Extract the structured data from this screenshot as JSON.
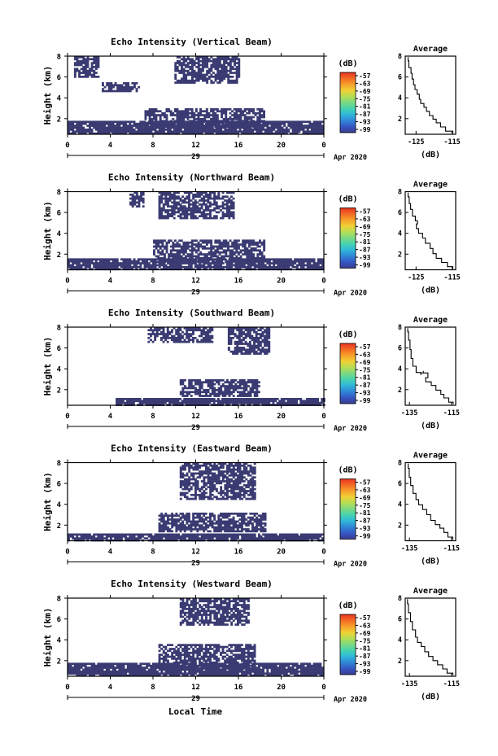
{
  "figure": {
    "xlabel": "Local Time",
    "height_ylabel": "Height (km)",
    "date_label": "Apr 2020",
    "day_label": "29",
    "colorbar_unit": "(dB)",
    "profile_title": "Average",
    "profile_xlabel": "(dB)"
  },
  "colors": {
    "echo": "#3b3b73",
    "colorbar": [
      "#3a3c8e",
      "#3556c4",
      "#2f86d6",
      "#30b6da",
      "#45d3b0",
      "#7ad982",
      "#b4de55",
      "#f0d135",
      "#f7a02a",
      "#f36a25",
      "#e83320"
    ]
  },
  "chart_data": [
    {
      "type": "heatmap",
      "title": "Echo Intensity (Vertical Beam)",
      "xlabel": "Local Time",
      "ylabel": "Height (km)",
      "xlim": [
        0,
        24
      ],
      "ylim": [
        0.5,
        8
      ],
      "xticks": [
        "0",
        "4",
        "8",
        "12",
        "16",
        "20",
        "0"
      ],
      "yticks": [
        "2",
        "4",
        "6",
        "8"
      ],
      "colorbar": {
        "unit": "(dB)",
        "ticks": [
          "-57",
          "-63",
          "-69",
          "-75",
          "-81",
          "-87",
          "-93",
          "-99"
        ]
      },
      "echo_regions": [
        {
          "t": [
            0,
            24
          ],
          "h": [
            0.5,
            1.8
          ]
        },
        {
          "t": [
            7.2,
            18.5
          ],
          "h": [
            1.2,
            3.0
          ]
        },
        {
          "t": [
            3.2,
            6.8
          ],
          "h": [
            4.7,
            5.5
          ]
        },
        {
          "t": [
            10.0,
            16.0
          ],
          "h": [
            5.5,
            8.0
          ]
        },
        {
          "t": [
            0.6,
            3.0
          ],
          "h": [
            6.0,
            8.0
          ]
        }
      ],
      "profile": {
        "title": "Average",
        "xlabel": "(dB)",
        "xticks": [
          "-125",
          "-115"
        ],
        "yticks": [
          "2",
          "4",
          "6",
          "8"
        ],
        "xlim": [
          -128,
          -114
        ],
        "ylim": [
          0.5,
          8
        ],
        "points": [
          [
            -127.2,
            7.9
          ],
          [
            -127.0,
            7.2
          ],
          [
            -126.4,
            6.6
          ],
          [
            -126.1,
            6.1
          ],
          [
            -125.7,
            5.5
          ],
          [
            -125.3,
            5.0
          ],
          [
            -124.7,
            4.6
          ],
          [
            -124.1,
            4.1
          ],
          [
            -123.7,
            3.6
          ],
          [
            -122.8,
            3.3
          ],
          [
            -122.1,
            2.9
          ],
          [
            -121.3,
            2.5
          ],
          [
            -120.3,
            2.1
          ],
          [
            -119.4,
            1.8
          ],
          [
            -118.2,
            1.4
          ],
          [
            -116.8,
            1.0
          ],
          [
            -114.8,
            0.6
          ]
        ]
      }
    },
    {
      "type": "heatmap",
      "title": "Echo Intensity (Northward Beam)",
      "xlabel": "Local Time",
      "ylabel": "Height (km)",
      "xlim": [
        0,
        24
      ],
      "ylim": [
        0.5,
        8
      ],
      "xticks": [
        "0",
        "4",
        "8",
        "12",
        "16",
        "20",
        "0"
      ],
      "yticks": [
        "2",
        "4",
        "6",
        "8"
      ],
      "colorbar": {
        "unit": "(dB)",
        "ticks": [
          "-57",
          "-63",
          "-69",
          "-75",
          "-81",
          "-87",
          "-93",
          "-99"
        ]
      },
      "echo_regions": [
        {
          "t": [
            0,
            24
          ],
          "h": [
            0.5,
            1.6
          ]
        },
        {
          "t": [
            8.0,
            18.5
          ],
          "h": [
            1.2,
            3.4
          ]
        },
        {
          "t": [
            8.5,
            15.5
          ],
          "h": [
            5.5,
            8.0
          ]
        },
        {
          "t": [
            5.8,
            7.2
          ],
          "h": [
            6.5,
            8.0
          ]
        }
      ],
      "profile": {
        "title": "Average",
        "xlabel": "(dB)",
        "xticks": [
          "-125",
          "-115"
        ],
        "yticks": [
          "2",
          "4",
          "6",
          "8"
        ],
        "xlim": [
          -128,
          -114
        ],
        "ylim": [
          0.5,
          8
        ],
        "points": [
          [
            -127.2,
            7.9
          ],
          [
            -126.9,
            7.1
          ],
          [
            -126.5,
            6.6
          ],
          [
            -126.0,
            6.0
          ],
          [
            -125.2,
            5.3
          ],
          [
            -124.6,
            5.1
          ],
          [
            -124.9,
            4.7
          ],
          [
            -124.3,
            4.2
          ],
          [
            -123.2,
            3.8
          ],
          [
            -122.4,
            3.3
          ],
          [
            -121.1,
            2.8
          ],
          [
            -120.3,
            2.3
          ],
          [
            -119.4,
            1.8
          ],
          [
            -117.9,
            1.4
          ],
          [
            -116.3,
            1.0
          ],
          [
            -114.8,
            0.6
          ]
        ]
      }
    },
    {
      "type": "heatmap",
      "title": "Echo Intensity (Southward Beam)",
      "xlabel": "Local Time",
      "ylabel": "Height (km)",
      "xlim": [
        0,
        24
      ],
      "ylim": [
        0.5,
        8
      ],
      "xticks": [
        "0",
        "4",
        "8",
        "12",
        "16",
        "20",
        "0"
      ],
      "yticks": [
        "2",
        "4",
        "6",
        "8"
      ],
      "colorbar": {
        "unit": "(dB)",
        "ticks": [
          "-57",
          "-63",
          "-69",
          "-75",
          "-81",
          "-87",
          "-93",
          "-99"
        ]
      },
      "echo_regions": [
        {
          "t": [
            4.5,
            24
          ],
          "h": [
            0.5,
            1.2
          ]
        },
        {
          "t": [
            10.5,
            18.0
          ],
          "h": [
            1.4,
            3.0
          ]
        },
        {
          "t": [
            7.5,
            13.5
          ],
          "h": [
            6.5,
            8.0
          ]
        },
        {
          "t": [
            15.0,
            19.0
          ],
          "h": [
            5.5,
            8.0
          ]
        }
      ],
      "profile": {
        "title": "Average",
        "xlabel": "(dB)",
        "xticks": [
          "-135",
          "-115"
        ],
        "yticks": [
          "2",
          "4",
          "6",
          "8"
        ],
        "xlim": [
          -137,
          -113
        ],
        "ylim": [
          0.5,
          8
        ],
        "points": [
          [
            -135.8,
            7.9
          ],
          [
            -135.4,
            7.2
          ],
          [
            -134.7,
            6.3
          ],
          [
            -134.2,
            5.4
          ],
          [
            -133.4,
            4.6
          ],
          [
            -131.8,
            3.9
          ],
          [
            -129.6,
            3.4
          ],
          [
            -128.4,
            3.8
          ],
          [
            -126.2,
            3.4
          ],
          [
            -127.3,
            2.9
          ],
          [
            -124.6,
            2.6
          ],
          [
            -122.4,
            2.2
          ],
          [
            -120.1,
            1.7
          ],
          [
            -118.6,
            1.4
          ],
          [
            -116.3,
            1.0
          ],
          [
            -114.2,
            0.6
          ]
        ]
      }
    },
    {
      "type": "heatmap",
      "title": "Echo Intensity (Eastward Beam)",
      "xlabel": "Local Time",
      "ylabel": "Height (km)",
      "xlim": [
        0,
        24
      ],
      "ylim": [
        0.5,
        8
      ],
      "xticks": [
        "0",
        "4",
        "8",
        "12",
        "16",
        "20",
        "0"
      ],
      "yticks": [
        "2",
        "4",
        "6",
        "8"
      ],
      "colorbar": {
        "unit": "(dB)",
        "ticks": [
          "-57",
          "-63",
          "-69",
          "-75",
          "-81",
          "-87",
          "-93",
          "-99"
        ]
      },
      "echo_regions": [
        {
          "t": [
            0,
            24
          ],
          "h": [
            0.5,
            1.2
          ]
        },
        {
          "t": [
            8.5,
            18.5
          ],
          "h": [
            1.3,
            3.2
          ]
        },
        {
          "t": [
            10.5,
            17.5
          ],
          "h": [
            4.5,
            8.0
          ]
        }
      ],
      "profile": {
        "title": "Average",
        "xlabel": "(dB)",
        "xticks": [
          "-135",
          "-115"
        ],
        "yticks": [
          "2",
          "4",
          "6",
          "8"
        ],
        "xlim": [
          -137,
          -113
        ],
        "ylim": [
          0.5,
          8
        ],
        "points": [
          [
            -135.6,
            7.9
          ],
          [
            -135.1,
            7.0
          ],
          [
            -134.4,
            6.2
          ],
          [
            -133.3,
            5.4
          ],
          [
            -131.9,
            4.7
          ],
          [
            -130.6,
            4.2
          ],
          [
            -128.7,
            3.7
          ],
          [
            -126.8,
            3.3
          ],
          [
            -124.9,
            2.7
          ],
          [
            -122.7,
            2.2
          ],
          [
            -120.5,
            1.9
          ],
          [
            -118.6,
            1.5
          ],
          [
            -116.7,
            1.1
          ],
          [
            -114.4,
            0.6
          ]
        ]
      }
    },
    {
      "type": "heatmap",
      "title": "Echo Intensity (Westward Beam)",
      "xlabel": "Local Time",
      "ylabel": "Height (km)",
      "xlim": [
        0,
        24
      ],
      "ylim": [
        0.5,
        8
      ],
      "xticks": [
        "0",
        "4",
        "8",
        "12",
        "16",
        "20",
        "0"
      ],
      "yticks": [
        "2",
        "4",
        "6",
        "8"
      ],
      "colorbar": {
        "unit": "(dB)",
        "ticks": [
          "-57",
          "-63",
          "-69",
          "-75",
          "-81",
          "-87",
          "-93",
          "-99"
        ]
      },
      "echo_regions": [
        {
          "t": [
            0,
            24
          ],
          "h": [
            0.5,
            1.8
          ]
        },
        {
          "t": [
            8.5,
            17.5
          ],
          "h": [
            1.3,
            3.6
          ]
        },
        {
          "t": [
            10.5,
            17.0
          ],
          "h": [
            5.5,
            8.0
          ]
        }
      ],
      "profile": {
        "title": "Average",
        "xlabel": "(dB)",
        "xticks": [
          "-135",
          "-115"
        ],
        "yticks": [
          "2",
          "4",
          "6",
          "8"
        ],
        "xlim": [
          -137,
          -113
        ],
        "ylim": [
          0.5,
          8
        ],
        "points": [
          [
            -135.9,
            7.9
          ],
          [
            -135.5,
            7.0
          ],
          [
            -134.5,
            6.2
          ],
          [
            -133.6,
            5.3
          ],
          [
            -132.1,
            4.6
          ],
          [
            -131.2,
            3.9
          ],
          [
            -129.4,
            3.6
          ],
          [
            -127.7,
            3.1
          ],
          [
            -125.9,
            2.6
          ],
          [
            -123.8,
            2.2
          ],
          [
            -121.6,
            1.8
          ],
          [
            -119.2,
            1.4
          ],
          [
            -117.1,
            1.0
          ],
          [
            -114.3,
            0.6
          ]
        ]
      }
    }
  ]
}
